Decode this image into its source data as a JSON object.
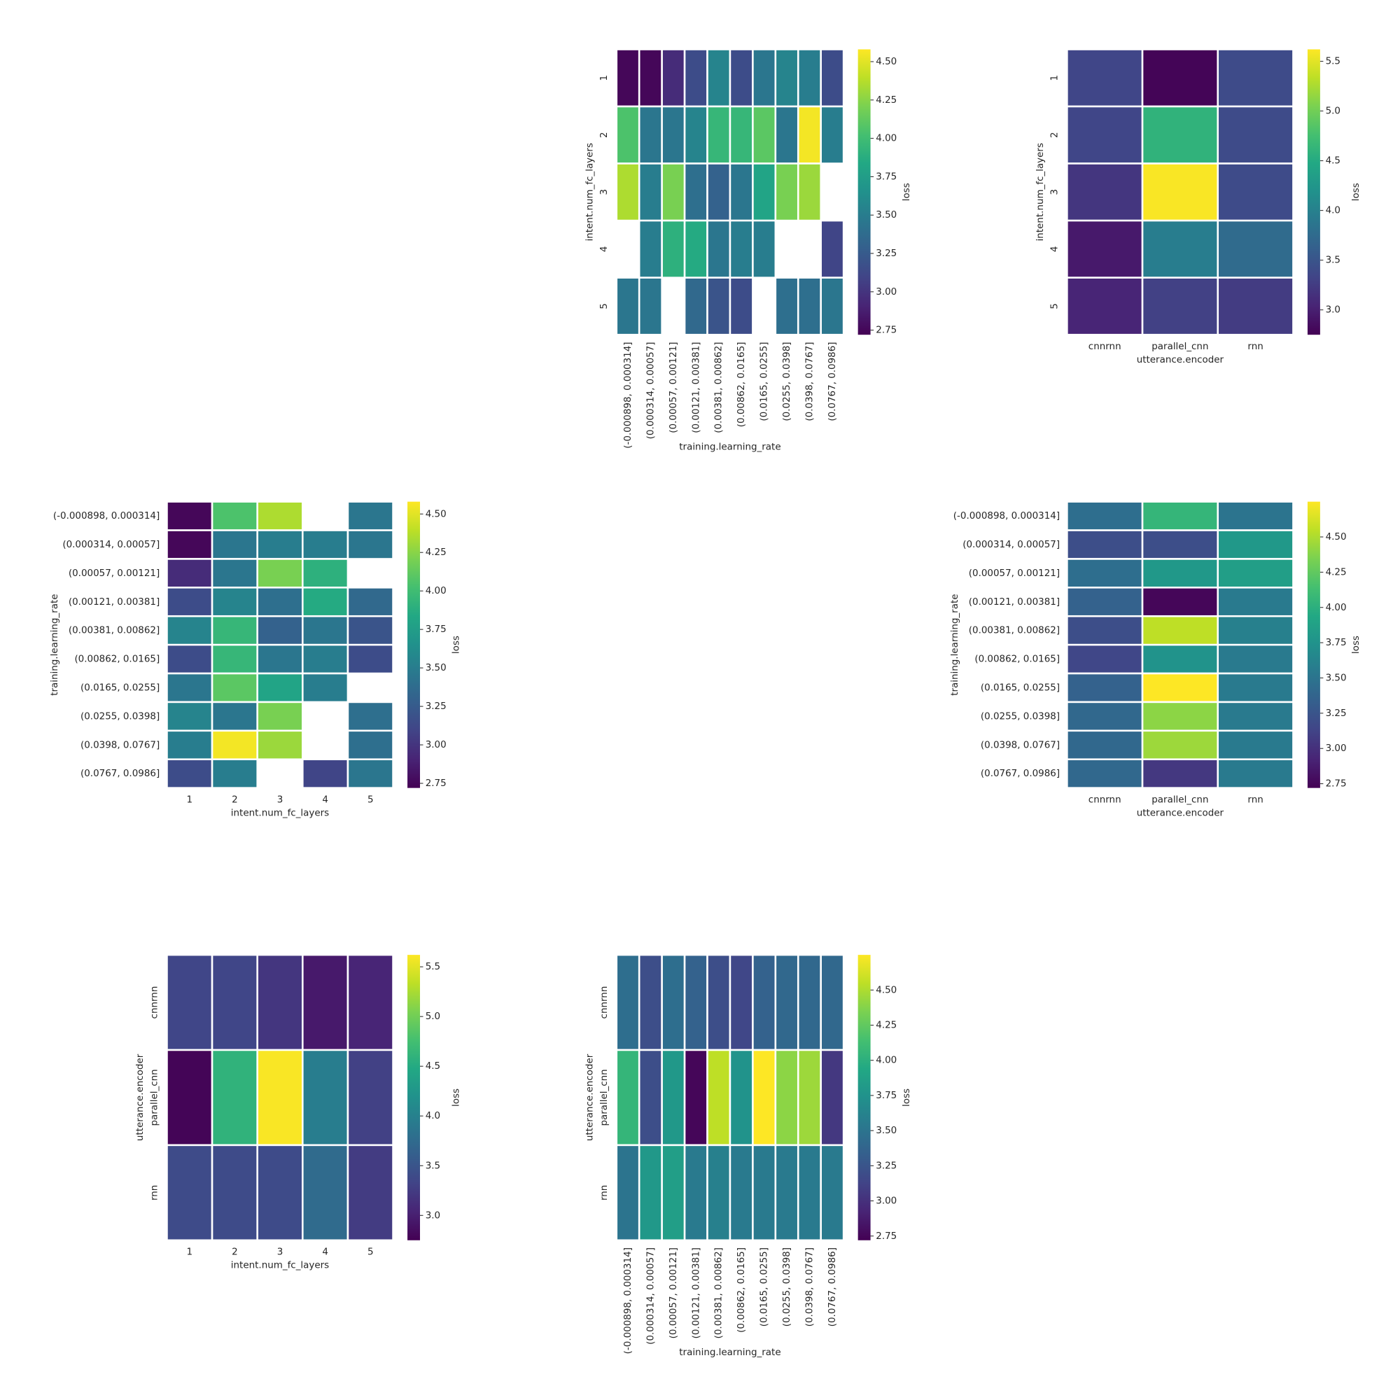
{
  "chart_data": [
    {
      "type": "heatmap",
      "cmap": "viridis",
      "x_label": "training.learning_rate",
      "y_label": "intent.num_fc_layers",
      "colorbar_label": "loss",
      "x_categories": [
        "(-0.000898, 0.000314]",
        "(0.000314, 0.00057]",
        "(0.00057, 0.00121]",
        "(0.00121, 0.00381]",
        "(0.00381, 0.00862]",
        "(0.00862, 0.0165]",
        "(0.0165, 0.0255]",
        "(0.0255, 0.0398]",
        "(0.0398, 0.0767]",
        "(0.0767, 0.0986]"
      ],
      "y_categories": [
        "1",
        "2",
        "3",
        "4",
        "5"
      ],
      "values": [
        [
          2.75,
          2.75,
          2.95,
          3.15,
          3.55,
          3.15,
          3.45,
          3.55,
          3.5,
          3.15
        ],
        [
          4.05,
          3.45,
          3.45,
          3.55,
          3.95,
          3.95,
          4.1,
          3.45,
          4.55,
          3.5
        ],
        [
          4.35,
          3.5,
          4.2,
          3.4,
          3.3,
          3.45,
          3.8,
          4.2,
          4.3,
          null
        ],
        [
          null,
          3.5,
          3.9,
          3.85,
          3.45,
          3.5,
          3.5,
          null,
          null,
          3.1
        ],
        [
          3.45,
          3.45,
          null,
          3.35,
          3.2,
          3.15,
          null,
          3.4,
          3.4,
          3.45
        ]
      ],
      "clim": [
        2.72,
        4.58
      ],
      "cticks": [
        2.75,
        {
          "value": 3,
          "label": "3.00"
        },
        3.25,
        {
          "value": 3.5,
          "label": "3.50"
        },
        3.75,
        {
          "value": 4,
          "label": "4.00"
        },
        4.25,
        {
          "value": 4.5,
          "label": "4.50"
        }
      ]
    },
    {
      "type": "heatmap",
      "cmap": "viridis",
      "x_label": "utterance.encoder",
      "y_label": "intent.num_fc_layers",
      "colorbar_label": "loss",
      "x_categories": [
        "cnnrnn",
        "parallel_cnn",
        "rnn"
      ],
      "y_categories": [
        "1",
        "2",
        "3",
        "4",
        "5"
      ],
      "values": [
        [
          3.35,
          2.78,
          3.4
        ],
        [
          3.35,
          4.6,
          3.4
        ],
        [
          3.2,
          5.6,
          3.4
        ],
        [
          2.95,
          3.95,
          3.75
        ],
        [
          3.05,
          3.3,
          3.25
        ]
      ],
      "clim": [
        2.75,
        5.62
      ],
      "cticks": [
        {
          "value": 3,
          "label": "3.0"
        },
        3.5,
        {
          "value": 4,
          "label": "4.0"
        },
        4.5,
        {
          "value": 5,
          "label": "5.0"
        },
        5.5
      ]
    },
    {
      "type": "heatmap",
      "cmap": "viridis",
      "x_label": "intent.num_fc_layers",
      "y_label": "training.learning_rate",
      "colorbar_label": "loss",
      "x_categories": [
        "1",
        "2",
        "3",
        "4",
        "5"
      ],
      "y_categories": [
        "(-0.000898, 0.000314]",
        "(0.000314, 0.00057]",
        "(0.00057, 0.00121]",
        "(0.00121, 0.00381]",
        "(0.00381, 0.00862]",
        "(0.00862, 0.0165]",
        "(0.0165, 0.0255]",
        "(0.0255, 0.0398]",
        "(0.0398, 0.0767]",
        "(0.0767, 0.0986]"
      ],
      "values": [
        [
          2.75,
          4.05,
          4.35,
          null,
          3.45
        ],
        [
          2.75,
          3.45,
          3.5,
          3.5,
          3.45
        ],
        [
          2.95,
          3.45,
          4.2,
          3.9,
          null
        ],
        [
          3.15,
          3.55,
          3.4,
          3.85,
          3.35
        ],
        [
          3.55,
          3.95,
          3.3,
          3.45,
          3.2
        ],
        [
          3.15,
          3.95,
          3.45,
          3.5,
          3.15
        ],
        [
          3.45,
          4.1,
          3.8,
          3.5,
          null
        ],
        [
          3.55,
          3.45,
          4.2,
          null,
          3.4
        ],
        [
          3.5,
          4.55,
          4.3,
          null,
          3.4
        ],
        [
          3.15,
          3.5,
          null,
          3.1,
          3.45
        ]
      ],
      "clim": [
        2.72,
        4.58
      ],
      "cticks": [
        2.75,
        {
          "value": 3,
          "label": "3.00"
        },
        3.25,
        {
          "value": 3.5,
          "label": "3.50"
        },
        3.75,
        {
          "value": 4,
          "label": "4.00"
        },
        4.25,
        {
          "value": 4.5,
          "label": "4.50"
        }
      ]
    },
    {
      "type": "heatmap",
      "cmap": "viridis",
      "x_label": "utterance.encoder",
      "y_label": "training.learning_rate",
      "colorbar_label": "loss",
      "x_categories": [
        "cnnrnn",
        "parallel_cnn",
        "rnn"
      ],
      "y_categories": [
        "(-0.000898, 0.000314]",
        "(0.000314, 0.00057]",
        "(0.00057, 0.00121]",
        "(0.00121, 0.00381]",
        "(0.00381, 0.00862]",
        "(0.00862, 0.0165]",
        "(0.0165, 0.0255]",
        "(0.0255, 0.0398]",
        "(0.0398, 0.0767]",
        "(0.0767, 0.0986]"
      ],
      "values": [
        [
          3.45,
          4.05,
          3.5
        ],
        [
          3.2,
          3.2,
          3.8
        ],
        [
          3.45,
          3.8,
          3.85
        ],
        [
          3.35,
          2.75,
          3.55
        ],
        [
          3.2,
          4.55,
          3.6
        ],
        [
          3.15,
          3.75,
          3.55
        ],
        [
          3.35,
          4.75,
          3.55
        ],
        [
          3.4,
          4.4,
          3.55
        ],
        [
          3.4,
          4.45,
          3.55
        ],
        [
          3.4,
          3.05,
          3.55
        ]
      ],
      "clim": [
        2.72,
        4.75
      ],
      "cticks": [
        2.75,
        {
          "value": 3,
          "label": "3.00"
        },
        3.25,
        {
          "value": 3.5,
          "label": "3.50"
        },
        3.75,
        {
          "value": 4,
          "label": "4.00"
        },
        4.25,
        {
          "value": 4.5,
          "label": "4.50"
        }
      ]
    },
    {
      "type": "heatmap",
      "cmap": "viridis",
      "x_label": "intent.num_fc_layers",
      "y_label": "utterance.encoder",
      "colorbar_label": "loss",
      "x_categories": [
        "1",
        "2",
        "3",
        "4",
        "5"
      ],
      "y_categories": [
        "cnnrnn",
        "parallel_cnn",
        "rnn"
      ],
      "values": [
        [
          3.35,
          3.35,
          3.2,
          2.95,
          3.05
        ],
        [
          2.78,
          4.6,
          5.6,
          3.95,
          3.3
        ],
        [
          3.4,
          3.4,
          3.4,
          3.75,
          3.25
        ]
      ],
      "clim": [
        2.75,
        5.62
      ],
      "cticks": [
        {
          "value": 3,
          "label": "3.0"
        },
        3.5,
        {
          "value": 4,
          "label": "4.0"
        },
        4.5,
        {
          "value": 5,
          "label": "5.0"
        },
        5.5
      ]
    },
    {
      "type": "heatmap",
      "cmap": "viridis",
      "x_label": "training.learning_rate",
      "y_label": "utterance.encoder",
      "colorbar_label": "loss",
      "x_categories": [
        "(-0.000898, 0.000314]",
        "(0.000314, 0.00057]",
        "(0.00057, 0.00121]",
        "(0.00121, 0.00381]",
        "(0.00381, 0.00862]",
        "(0.00862, 0.0165]",
        "(0.0165, 0.0255]",
        "(0.0255, 0.0398]",
        "(0.0398, 0.0767]",
        "(0.0767, 0.0986]"
      ],
      "y_categories": [
        "cnnrnn",
        "parallel_cnn",
        "rnn"
      ],
      "values": [
        [
          3.45,
          3.2,
          3.45,
          3.35,
          3.2,
          3.15,
          3.35,
          3.4,
          3.4,
          3.4
        ],
        [
          4.05,
          3.2,
          3.8,
          2.75,
          4.55,
          3.75,
          4.75,
          4.4,
          4.45,
          3.05
        ],
        [
          3.5,
          3.8,
          3.85,
          3.55,
          3.6,
          3.55,
          3.55,
          3.55,
          3.55,
          3.55
        ]
      ],
      "clim": [
        2.72,
        4.75
      ],
      "cticks": [
        2.75,
        {
          "value": 3,
          "label": "3.00"
        },
        3.25,
        {
          "value": 3.5,
          "label": "3.50"
        },
        3.75,
        {
          "value": 4,
          "label": "4.00"
        },
        4.25,
        {
          "value": 4.5,
          "label": "4.50"
        }
      ]
    }
  ]
}
